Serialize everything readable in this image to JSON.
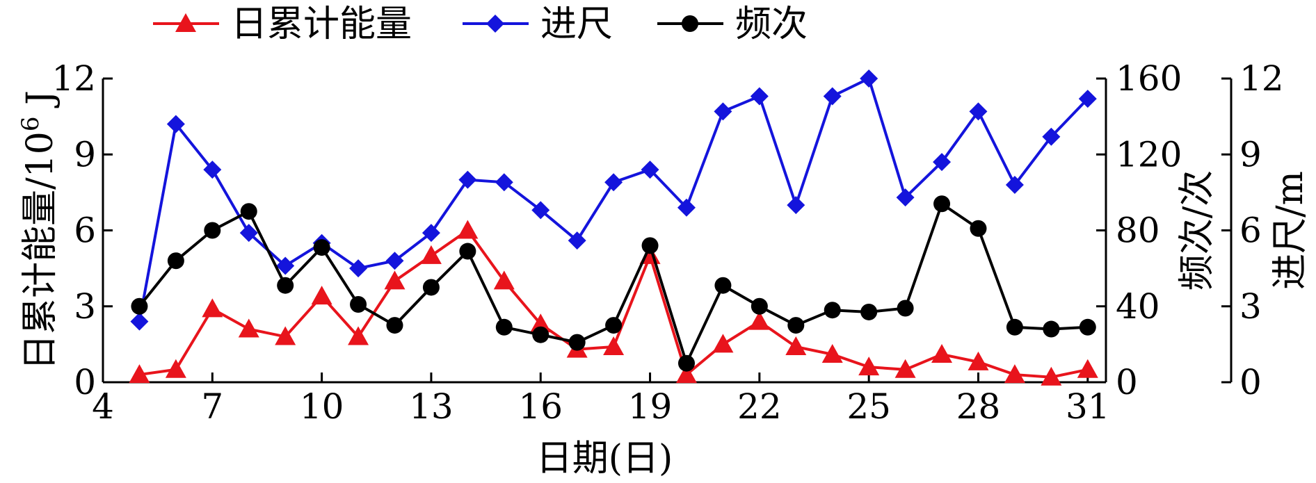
{
  "chart_data": {
    "type": "line",
    "xlabel": "日期(日)",
    "x_ticks": [
      4,
      7,
      10,
      13,
      16,
      19,
      22,
      25,
      28,
      31
    ],
    "xlim": [
      4,
      31.5
    ],
    "y_left": {
      "label": "日累计能量/10",
      "label_sup": "6",
      "label_unit": " J",
      "ticks": [
        0,
        3,
        6,
        9,
        12
      ],
      "lim": [
        0,
        12
      ]
    },
    "y_right1": {
      "label": "频次/次",
      "ticks": [
        0,
        40,
        80,
        120,
        160
      ],
      "lim": [
        0,
        160
      ]
    },
    "y_right2": {
      "label": "进尺/m",
      "ticks": [
        0,
        3,
        6,
        9,
        12
      ],
      "lim": [
        0,
        12
      ]
    },
    "x": [
      5,
      6,
      7,
      8,
      9,
      10,
      11,
      12,
      13,
      14,
      15,
      16,
      17,
      18,
      19,
      20,
      21,
      22,
      23,
      24,
      25,
      26,
      27,
      28,
      29,
      30,
      31
    ],
    "series": [
      {
        "name": "日累计能量",
        "axis": "left",
        "color": "#e8141c",
        "marker": "triangle",
        "values": [
          0.3,
          0.5,
          2.9,
          2.1,
          1.8,
          3.4,
          1.8,
          4.0,
          5.0,
          6.0,
          4.0,
          2.3,
          1.3,
          1.4,
          5.0,
          0.3,
          1.5,
          2.4,
          1.4,
          1.1,
          0.6,
          0.5,
          1.1,
          0.8,
          0.3,
          0.2,
          0.5
        ]
      },
      {
        "name": "进尺",
        "axis": "right2",
        "color": "#1414dc",
        "marker": "diamond",
        "values": [
          2.4,
          10.2,
          8.4,
          5.9,
          4.6,
          5.5,
          4.5,
          4.8,
          5.9,
          8.0,
          7.9,
          6.8,
          5.6,
          7.9,
          8.4,
          6.9,
          10.7,
          11.3,
          7.0,
          11.3,
          12.0,
          7.3,
          8.7,
          10.7,
          7.8,
          9.7,
          11.2
        ]
      },
      {
        "name": "频次",
        "axis": "right1",
        "color": "#000000",
        "marker": "circle",
        "values": [
          40,
          64,
          80,
          90,
          51,
          71,
          41,
          30,
          50,
          69,
          29,
          25,
          21,
          30,
          72,
          10,
          51,
          40,
          30,
          38,
          37,
          39,
          94,
          81,
          29,
          28,
          29
        ]
      }
    ],
    "legend": "top"
  }
}
